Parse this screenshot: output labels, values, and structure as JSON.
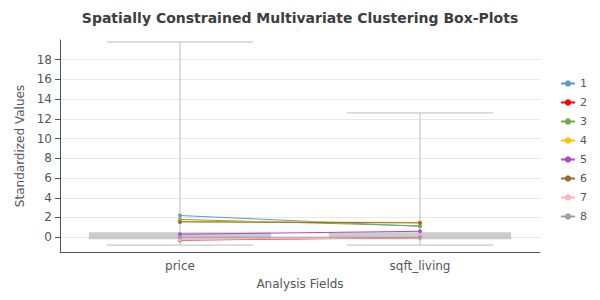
{
  "chart_data": {
    "type": "line",
    "title": "Spatially Constrained Multivariate Clustering Box-Plots",
    "x_label": "Analysis Fields",
    "y_label": "Standardized Values",
    "categories": [
      "price",
      "sqft_living"
    ],
    "ylim": [
      -1.5,
      20
    ],
    "yticks": [
      0,
      2,
      4,
      6,
      8,
      10,
      12,
      14,
      16,
      18
    ],
    "grid": true,
    "legend": "right",
    "series": [
      {
        "type": "boxplot",
        "color": "#BBBBBB",
        "values": [
          {
            "whisker_low": -0.8,
            "q1": -0.2,
            "q3": 0.5,
            "whisker_high": 19.8
          },
          {
            "whisker_low": -0.8,
            "q1": -0.2,
            "q3": 0.5,
            "whisker_high": 12.6
          }
        ]
      },
      {
        "name": "1",
        "color": "#5B9BD5",
        "marker": "circle",
        "values": [
          2.2,
          1.1
        ]
      },
      {
        "name": "2",
        "color": "#FF0000",
        "marker": "circle",
        "values": [
          -0.3,
          -0.05
        ]
      },
      {
        "name": "3",
        "color": "#70AD47",
        "marker": "circle",
        "values": [
          1.8,
          1.15
        ]
      },
      {
        "name": "4",
        "color": "#FFC000",
        "marker": "circle",
        "values": [
          1.6,
          1.5
        ]
      },
      {
        "name": "5",
        "color": "#BB44CC",
        "marker": "circle",
        "values": [
          0.3,
          0.6
        ]
      },
      {
        "name": "6",
        "color": "#9C6B2F",
        "marker": "circle",
        "values": [
          1.55,
          1.45
        ]
      },
      {
        "name": "7",
        "color": "#FFB6C1",
        "marker": "circle",
        "values": [
          -0.25,
          -0.05
        ]
      },
      {
        "name": "8",
        "color": "#A0A0A0",
        "marker": "circle",
        "values": [
          0.0,
          0.0
        ]
      }
    ]
  }
}
